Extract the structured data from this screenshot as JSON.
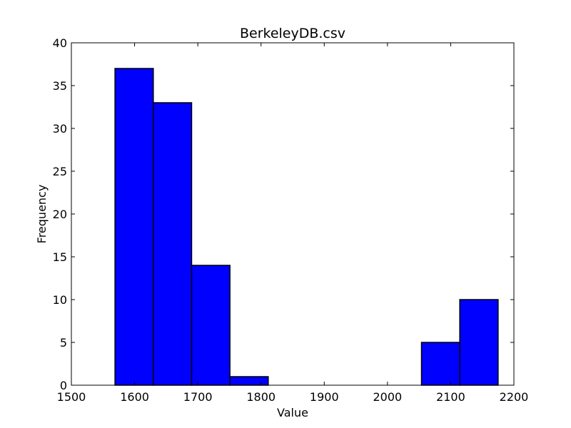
{
  "chart_data": {
    "type": "bar",
    "title": "BerkeleyDB.csv",
    "xlabel": "Value",
    "ylabel": "Frequency",
    "xlim": [
      1500,
      2200
    ],
    "ylim": [
      0,
      40
    ],
    "xticks": [
      1500,
      1600,
      1700,
      1800,
      1900,
      2000,
      2100,
      2200
    ],
    "yticks": [
      0,
      5,
      10,
      15,
      20,
      25,
      30,
      35,
      40
    ],
    "bin_edges": [
      1569,
      1629.6,
      1690.2,
      1750.8,
      1811.4,
      1872,
      1932.6,
      1993.2,
      2053.8,
      2114.4,
      2175
    ],
    "values": [
      37,
      33,
      14,
      1,
      0,
      0,
      0,
      0,
      5,
      10
    ],
    "bar_color": "#0000ff",
    "edge_color": "#000000",
    "grid": false
  }
}
